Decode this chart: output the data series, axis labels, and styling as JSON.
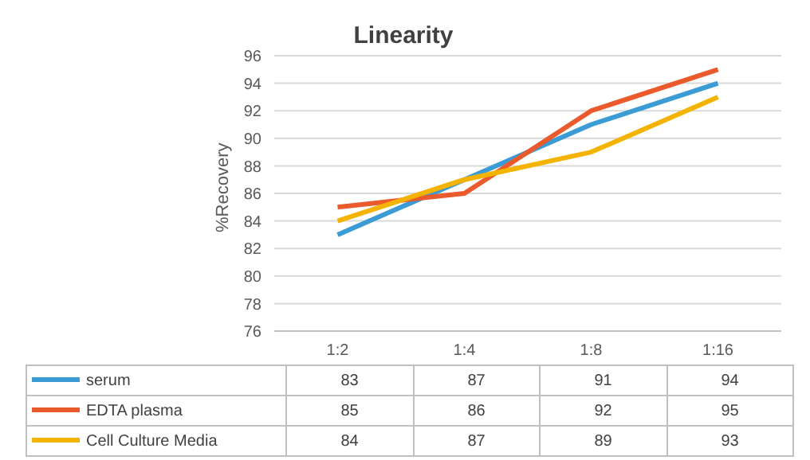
{
  "chart_data": {
    "type": "line",
    "title": "Linearity",
    "ylabel": "%Recovery",
    "categories": [
      "1:2",
      "1:4",
      "1:8",
      "1:16"
    ],
    "series": [
      {
        "name": "serum",
        "color": "#3a9bd5",
        "values": [
          83,
          87,
          91,
          94
        ]
      },
      {
        "name": "EDTA plasma",
        "color": "#ea5a2c",
        "values": [
          85,
          86,
          92,
          95
        ]
      },
      {
        "name": "Cell Culture Media",
        "color": "#f5b301",
        "values": [
          84,
          87,
          89,
          93
        ]
      }
    ],
    "ylim": [
      76,
      96
    ],
    "yticks": [
      76,
      78,
      80,
      82,
      84,
      86,
      88,
      90,
      92,
      94,
      96
    ],
    "grid": "y",
    "legend": "bottom",
    "data_labels": true,
    "marker": "none",
    "line_style": "solid"
  }
}
